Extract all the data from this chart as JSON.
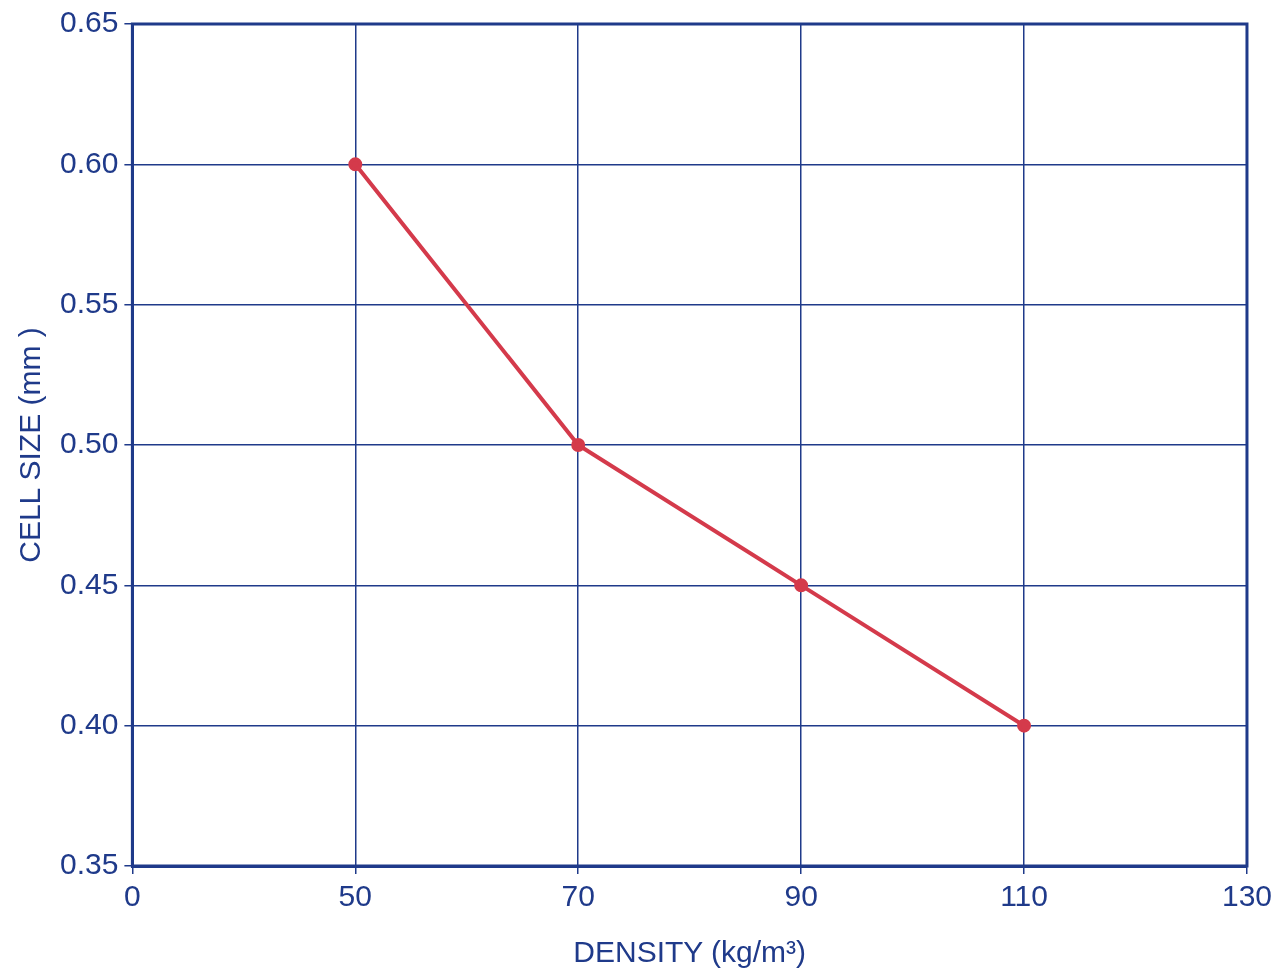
{
  "chart_data": {
    "type": "line",
    "xlabel": "DENSITY (kg/m³)",
    "ylabel": "CELL SIZE (mm )",
    "categories": [
      "0",
      "50",
      "70",
      "90",
      "110",
      "130"
    ],
    "series": [
      {
        "color": "#d43a4b",
        "values": [
          null,
          0.6,
          0.5,
          0.45,
          0.4,
          null
        ]
      }
    ],
    "ylim": [
      0.35,
      0.65
    ],
    "yticks": [
      {
        "value": 0.35,
        "label": "0.35"
      },
      {
        "value": 0.4,
        "label": "0.40"
      },
      {
        "value": 0.45,
        "label": "0.45"
      },
      {
        "value": 0.5,
        "label": "0.50"
      },
      {
        "value": 0.55,
        "label": "0.55"
      },
      {
        "value": 0.6,
        "label": "0.60"
      },
      {
        "value": 0.65,
        "label": "0.65"
      }
    ],
    "grid": true,
    "marker": "circle",
    "line_style": "solid",
    "legend": false
  }
}
